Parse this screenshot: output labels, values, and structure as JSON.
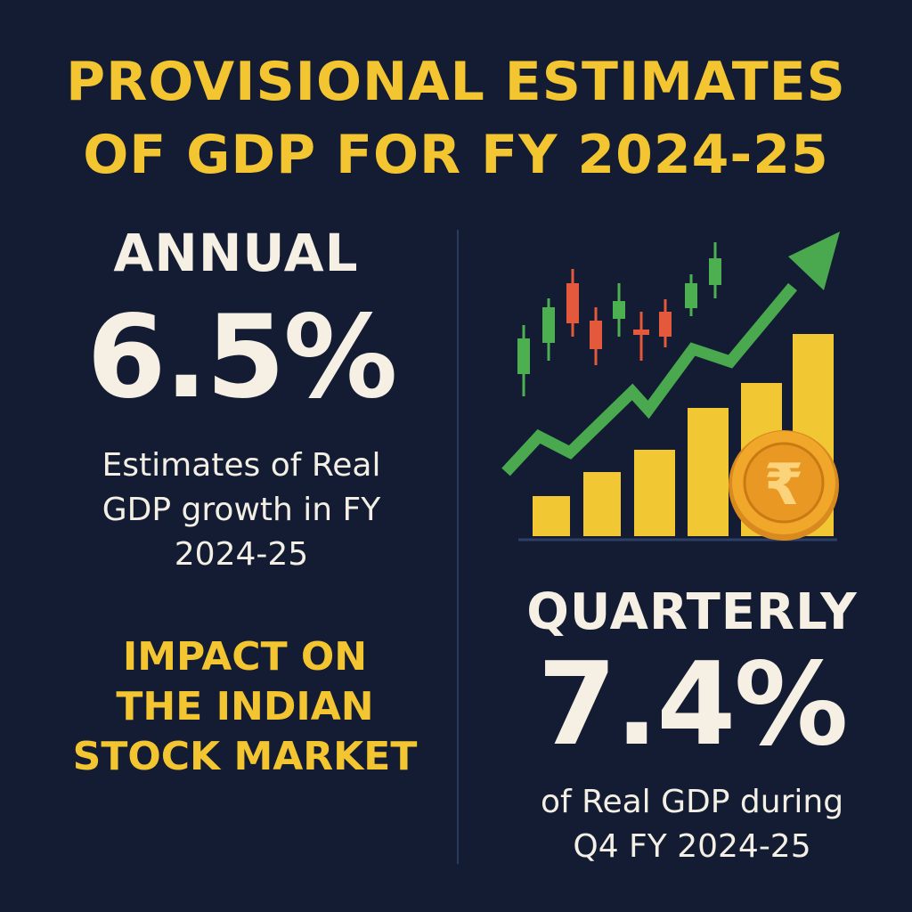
{
  "title": {
    "line1": "PROVISIONAL ESTIMATES",
    "line2": "OF GDP FOR FY 2024-25"
  },
  "annual": {
    "label": "ANNUAL",
    "value": "6.5%",
    "description_lines": [
      "Estimates of Real",
      "GDP growth in FY",
      "2024-25"
    ]
  },
  "impact": {
    "lines": [
      "IMPACT ON",
      "THE INDIAN",
      "STOCK MARKET"
    ]
  },
  "quarterly": {
    "label": "QUARTERLY",
    "value": "7.4%",
    "description_lines": [
      "of Real GDP during",
      "Q4 FY 2024-25"
    ]
  },
  "illustration": {
    "icons": [
      "candlestick-chart-icon",
      "trend-up-arrow-icon",
      "bar-chart-icon",
      "rupee-coin-icon"
    ],
    "coin_symbol": "₹",
    "colors": {
      "background": "#131c33",
      "title": "#f3c531",
      "text": "#f5f0e3",
      "up_candle": "#4caf50",
      "down_candle": "#e4583b",
      "arrow": "#4aa84f",
      "bars": "#f2c734",
      "coin": "#f0a72a"
    }
  }
}
